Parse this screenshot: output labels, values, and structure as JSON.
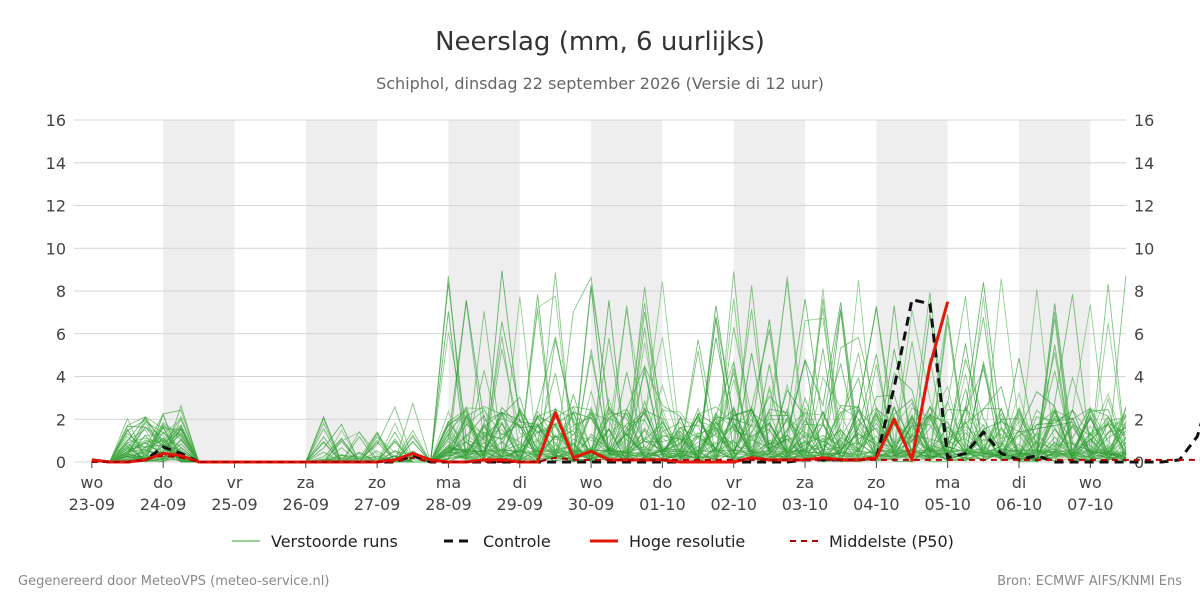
{
  "chart_data": {
    "type": "line",
    "title": "Neerslag (mm, 6 uurlijks)",
    "subtitle": "Schiphol, dinsdag 22 september 2026 (Versie di 12 uur)",
    "ylim": [
      0,
      16
    ],
    "y_ticks": [
      0,
      2,
      4,
      6,
      8,
      10,
      12,
      14,
      16
    ],
    "x_unit": "6-uurs stappen vanaf 23-09 00 uur",
    "x_range": [
      -1,
      58
    ],
    "x_ticks": [
      {
        "day": "wo",
        "date": "23-09"
      },
      {
        "day": "do",
        "date": "24-09"
      },
      {
        "day": "vr",
        "date": "25-09"
      },
      {
        "day": "za",
        "date": "26-09"
      },
      {
        "day": "zo",
        "date": "27-09"
      },
      {
        "day": "ma",
        "date": "28-09"
      },
      {
        "day": "di",
        "date": "29-09"
      },
      {
        "day": "wo",
        "date": "30-09"
      },
      {
        "day": "do",
        "date": "01-10"
      },
      {
        "day": "vr",
        "date": "02-10"
      },
      {
        "day": "za",
        "date": "03-10"
      },
      {
        "day": "zo",
        "date": "04-10"
      },
      {
        "day": "ma",
        "date": "05-10"
      },
      {
        "day": "di",
        "date": "06-10"
      },
      {
        "day": "wo",
        "date": "07-10"
      }
    ],
    "shaded_days": [
      1,
      3,
      5,
      7,
      9,
      11,
      13
    ],
    "grid": true,
    "legend_position": "bottom",
    "series": [
      {
        "name": "Verstoorde runs",
        "style": "thin",
        "color": "#2ca02c",
        "values": []
      },
      {
        "name": "Controle",
        "style": "dashed",
        "color": "#111111",
        "values": [
          0.1,
          0,
          0,
          0.1,
          0.7,
          0.4,
          0,
          0,
          0,
          0,
          0,
          0,
          0,
          0,
          0,
          0,
          0,
          0,
          0.3,
          0,
          0,
          0,
          0,
          0,
          0,
          0,
          0,
          0,
          0,
          0,
          0,
          0,
          0,
          0,
          0,
          0,
          0,
          0,
          0,
          0,
          0.1,
          0.1,
          0.1,
          0.1,
          0.2,
          3.5,
          7.6,
          7.4,
          0.2,
          0.4,
          1.4,
          0.4,
          0.1,
          0.3,
          0,
          0,
          0,
          0,
          0,
          0,
          0,
          0.1,
          1.2,
          4.0,
          1.2,
          1.8
        ]
      },
      {
        "name": "Hoge resolutie",
        "style": "thick",
        "color": "#e3170a",
        "values": [
          0.1,
          0,
          0,
          0.1,
          0.4,
          0.3,
          0,
          0,
          0,
          0,
          0,
          0,
          0,
          0,
          0,
          0,
          0,
          0.1,
          0.4,
          0.1,
          0,
          0,
          0.1,
          0.1,
          0,
          0,
          2.3,
          0.2,
          0.5,
          0.1,
          0.1,
          0.1,
          0.1,
          0,
          0,
          0,
          0,
          0.2,
          0.1,
          0.1,
          0.1,
          0.2,
          0.1,
          0.1,
          0.2,
          2.0,
          0.1,
          4.5,
          7.5
        ]
      },
      {
        "name": "Middelste (P50)",
        "style": "dashed",
        "color": "#b00000",
        "values": [
          0,
          0,
          0,
          0.1,
          0.3,
          0.2,
          0,
          0,
          0,
          0,
          0,
          0,
          0,
          0,
          0,
          0,
          0,
          0,
          0.2,
          0,
          0,
          0,
          0,
          0,
          0,
          0,
          0.2,
          0.1,
          0.1,
          0.1,
          0.1,
          0.1,
          0.1,
          0.1,
          0.1,
          0.1,
          0.1,
          0.1,
          0.1,
          0.1,
          0.1,
          0.1,
          0.1,
          0.1,
          0.1,
          0.1,
          0.1,
          0.1,
          0.1,
          0.1,
          0.1,
          0.1,
          0.1,
          0.1,
          0.1,
          0.1,
          0.1,
          0.1,
          0.1,
          0.1,
          0.1,
          0.1,
          0.1,
          0.1,
          0.1,
          0.1
        ]
      }
    ]
  },
  "footer": {
    "left": "Gegenereerd door MeteoVPS (meteo-service.nl)",
    "right": "Bron: ECMWF AIFS/KNMI Ens"
  }
}
